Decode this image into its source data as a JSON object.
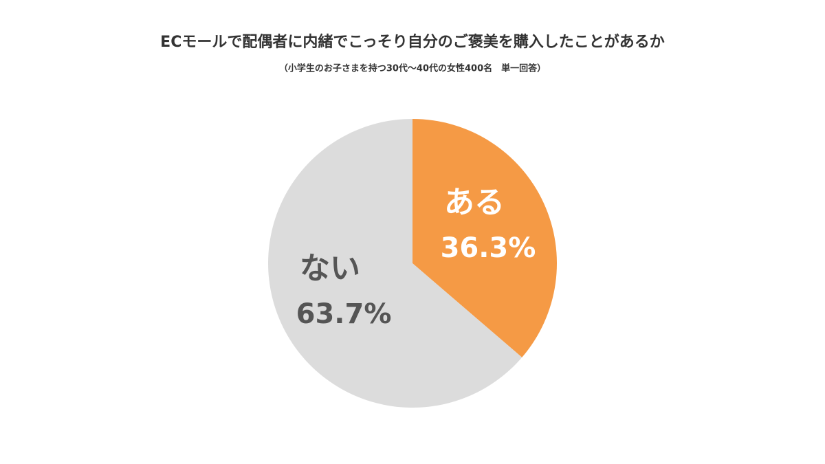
{
  "chart_data": {
    "type": "pie",
    "title": "ECモールで配偶者に内緒でこっそり自分のご褒美を購入したことがあるか",
    "subtitle": "（小学生のお子さまを持つ30代〜40代の女性400名　単一回答）",
    "categories": [
      "ある",
      "ない"
    ],
    "values": [
      36.3,
      63.7
    ],
    "value_labels": [
      "36.3%",
      "63.7%"
    ],
    "colors": [
      "#f59a45",
      "#dcdcdc"
    ],
    "label_colors": [
      "#ffffff",
      "#555555"
    ]
  }
}
